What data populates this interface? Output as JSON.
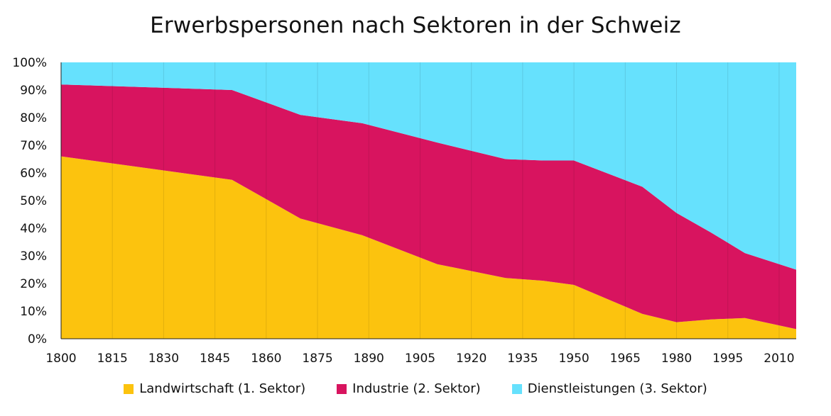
{
  "chart_data": {
    "type": "area",
    "title": "Erwerbspersonen nach Sektoren in der Schweiz",
    "xlabel": "",
    "ylabel": "",
    "stacked": true,
    "percent": true,
    "xlim": [
      1800,
      2015
    ],
    "ylim": [
      0,
      100
    ],
    "grid": true,
    "legend_position": "bottom",
    "x_ticks": [
      "1800",
      "1815",
      "1830",
      "1845",
      "1860",
      "1875",
      "1890",
      "1905",
      "1920",
      "1935",
      "1950",
      "1965",
      "1980",
      "1995",
      "2010"
    ],
    "y_ticks": [
      "0%",
      "10%",
      "20%",
      "30%",
      "40%",
      "50%",
      "60%",
      "70%",
      "80%",
      "90%",
      "100%"
    ],
    "x": [
      1800,
      1850,
      1860,
      1870,
      1888,
      1910,
      1930,
      1941,
      1950,
      1970,
      1980,
      1990,
      2000,
      2015
    ],
    "series": [
      {
        "name": "Landwirtschaft (1. Sektor)",
        "color": "#fcc30e",
        "values": [
          66,
          57.5,
          50.5,
          43.5,
          37.5,
          27,
          22,
          21,
          19.5,
          9,
          6,
          7,
          7.5,
          3.5
        ]
      },
      {
        "name": "Industrie (2. Sektor)",
        "color": "#d8145f",
        "values": [
          26,
          32.5,
          35,
          37.5,
          40.5,
          44,
          43,
          43.5,
          45,
          46,
          39.5,
          31.5,
          23.5,
          21.5
        ]
      },
      {
        "name": "Dienstleistungen (3. Sektor)",
        "color": "#66e1fd",
        "values": [
          8,
          10,
          14.5,
          19,
          22,
          29,
          35,
          35.5,
          35.5,
          45,
          54.5,
          61.5,
          69,
          75
        ]
      }
    ]
  }
}
